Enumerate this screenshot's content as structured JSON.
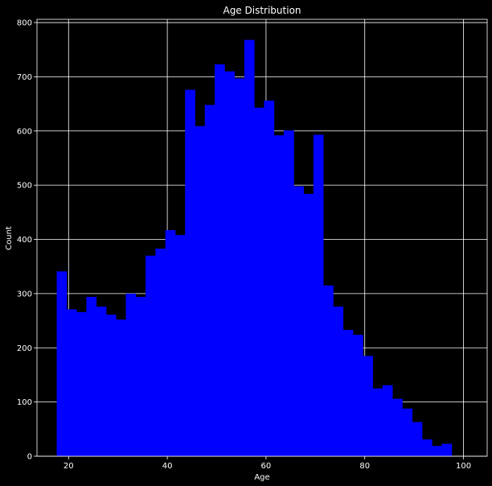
{
  "chart_data": {
    "type": "bar",
    "title": "Age Distribution",
    "xlabel": "Age",
    "ylabel": "Count",
    "xlim": [
      13.6,
      104.8
    ],
    "ylim": [
      0,
      806
    ],
    "x_ticks": [
      20,
      40,
      60,
      80,
      100
    ],
    "y_ticks": [
      0,
      100,
      200,
      300,
      400,
      500,
      600,
      700,
      800
    ],
    "grid": true,
    "bar_color": "#0000ff",
    "background_color": "#000000",
    "grid_color": "#ffffff",
    "bins": [
      {
        "x0": 17.6,
        "x1": 19.6,
        "count": 341
      },
      {
        "x0": 19.6,
        "x1": 21.6,
        "count": 271
      },
      {
        "x0": 21.6,
        "x1": 23.6,
        "count": 266
      },
      {
        "x0": 23.6,
        "x1": 25.6,
        "count": 294
      },
      {
        "x0": 25.6,
        "x1": 27.6,
        "count": 276
      },
      {
        "x0": 27.6,
        "x1": 29.6,
        "count": 261
      },
      {
        "x0": 29.6,
        "x1": 31.6,
        "count": 252
      },
      {
        "x0": 31.6,
        "x1": 33.6,
        "count": 300
      },
      {
        "x0": 33.6,
        "x1": 35.6,
        "count": 294
      },
      {
        "x0": 35.6,
        "x1": 37.6,
        "count": 370
      },
      {
        "x0": 37.6,
        "x1": 39.6,
        "count": 383
      },
      {
        "x0": 39.6,
        "x1": 41.6,
        "count": 417
      },
      {
        "x0": 41.6,
        "x1": 43.6,
        "count": 408
      },
      {
        "x0": 43.6,
        "x1": 45.6,
        "count": 676
      },
      {
        "x0": 45.6,
        "x1": 47.6,
        "count": 609
      },
      {
        "x0": 47.6,
        "x1": 49.6,
        "count": 648
      },
      {
        "x0": 49.6,
        "x1": 51.6,
        "count": 723
      },
      {
        "x0": 51.6,
        "x1": 53.6,
        "count": 710
      },
      {
        "x0": 53.6,
        "x1": 55.6,
        "count": 697
      },
      {
        "x0": 55.6,
        "x1": 57.6,
        "count": 768
      },
      {
        "x0": 57.6,
        "x1": 59.6,
        "count": 643
      },
      {
        "x0": 59.6,
        "x1": 61.6,
        "count": 656
      },
      {
        "x0": 61.6,
        "x1": 63.6,
        "count": 592
      },
      {
        "x0": 63.6,
        "x1": 65.6,
        "count": 601
      },
      {
        "x0": 65.6,
        "x1": 67.6,
        "count": 498
      },
      {
        "x0": 67.6,
        "x1": 69.6,
        "count": 484
      },
      {
        "x0": 69.6,
        "x1": 71.6,
        "count": 593
      },
      {
        "x0": 71.6,
        "x1": 73.6,
        "count": 315
      },
      {
        "x0": 73.6,
        "x1": 75.6,
        "count": 276
      },
      {
        "x0": 75.6,
        "x1": 77.6,
        "count": 233
      },
      {
        "x0": 77.6,
        "x1": 79.6,
        "count": 224
      },
      {
        "x0": 79.6,
        "x1": 81.6,
        "count": 185
      },
      {
        "x0": 81.6,
        "x1": 83.6,
        "count": 125
      },
      {
        "x0": 83.6,
        "x1": 85.6,
        "count": 131
      },
      {
        "x0": 85.6,
        "x1": 87.6,
        "count": 106
      },
      {
        "x0": 87.6,
        "x1": 89.6,
        "count": 88
      },
      {
        "x0": 89.6,
        "x1": 91.6,
        "count": 63
      },
      {
        "x0": 91.6,
        "x1": 93.6,
        "count": 31
      },
      {
        "x0": 93.6,
        "x1": 95.6,
        "count": 19
      },
      {
        "x0": 95.6,
        "x1": 97.6,
        "count": 23
      }
    ]
  }
}
